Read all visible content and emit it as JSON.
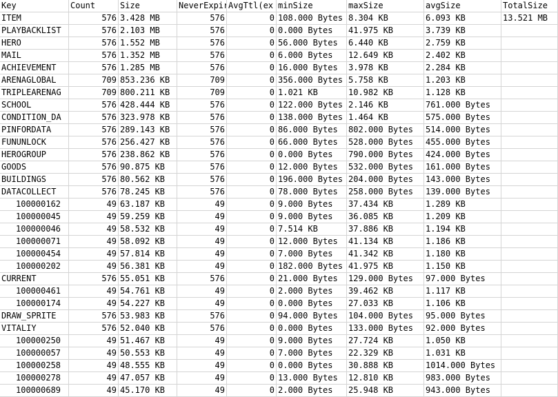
{
  "sheet": {
    "headers": [
      "Key",
      "Count",
      "Size",
      "NeverExpire",
      "AvgTtl(ex",
      "minSize",
      "maxSize",
      "avgSize",
      "TotalSize"
    ],
    "total_size_value": "13.521 MB",
    "rows": [
      {
        "key": "ITEM",
        "indent": false,
        "count": "576",
        "size": "3.428 MB",
        "never": "576",
        "avgttl": "0",
        "min": "108.000 Bytes",
        "max": "8.304 KB",
        "avg": "6.093 KB"
      },
      {
        "key": "PLAYBACKLIST",
        "indent": false,
        "count": "576",
        "size": "2.103 MB",
        "never": "576",
        "avgttl": "0",
        "min": "0.000 Bytes",
        "max": "41.975 KB",
        "avg": "3.739 KB"
      },
      {
        "key": "HERO",
        "indent": false,
        "count": "576",
        "size": "1.552 MB",
        "never": "576",
        "avgttl": "0",
        "min": "56.000 Bytes",
        "max": "6.440 KB",
        "avg": "2.759 KB"
      },
      {
        "key": "MAIL",
        "indent": false,
        "count": "576",
        "size": "1.352 MB",
        "never": "576",
        "avgttl": "0",
        "min": "6.000 Bytes",
        "max": "12.649 KB",
        "avg": "2.402 KB"
      },
      {
        "key": "ACHIEVEMENT",
        "indent": false,
        "count": "576",
        "size": "1.285 MB",
        "never": "576",
        "avgttl": "0",
        "min": "16.000 Bytes",
        "max": "3.978 KB",
        "avg": "2.284 KB"
      },
      {
        "key": "ARENAGLOBAL",
        "indent": false,
        "count": "709",
        "size": "853.236 KB",
        "never": "709",
        "avgttl": "0",
        "min": "356.000 Bytes",
        "max": "5.758 KB",
        "avg": "1.203 KB"
      },
      {
        "key": "TRIPLEARENAG",
        "indent": false,
        "count": "709",
        "size": "800.211 KB",
        "never": "709",
        "avgttl": "0",
        "min": "1.021 KB",
        "max": "10.982 KB",
        "avg": "1.128 KB"
      },
      {
        "key": "SCHOOL",
        "indent": false,
        "count": "576",
        "size": "428.444 KB",
        "never": "576",
        "avgttl": "0",
        "min": "122.000 Bytes",
        "max": "2.146 KB",
        "avg": "761.000 Bytes"
      },
      {
        "key": "CONDITION_DA",
        "indent": false,
        "count": "576",
        "size": "323.978 KB",
        "never": "576",
        "avgttl": "0",
        "min": "138.000 Bytes",
        "max": "1.464 KB",
        "avg": "575.000 Bytes"
      },
      {
        "key": "PINFORDATA",
        "indent": false,
        "count": "576",
        "size": "289.143 KB",
        "never": "576",
        "avgttl": "0",
        "min": "86.000 Bytes",
        "max": "802.000 Bytes",
        "avg": "514.000 Bytes"
      },
      {
        "key": "FUNUNLOCK",
        "indent": false,
        "count": "576",
        "size": "256.427 KB",
        "never": "576",
        "avgttl": "0",
        "min": "66.000 Bytes",
        "max": "528.000 Bytes",
        "avg": "455.000 Bytes"
      },
      {
        "key": "HEROGROUP",
        "indent": false,
        "count": "576",
        "size": "238.862 KB",
        "never": "576",
        "avgttl": "0",
        "min": "0.000 Bytes",
        "max": "790.000 Bytes",
        "avg": "424.000 Bytes"
      },
      {
        "key": "GOODS",
        "indent": false,
        "count": "576",
        "size": "90.875 KB",
        "never": "576",
        "avgttl": "0",
        "min": "12.000 Bytes",
        "max": "532.000 Bytes",
        "avg": "161.000 Bytes"
      },
      {
        "key": "BUILDINGS",
        "indent": false,
        "count": "576",
        "size": "80.562 KB",
        "never": "576",
        "avgttl": "0",
        "min": "196.000 Bytes",
        "max": "204.000 Bytes",
        "avg": "143.000 Bytes"
      },
      {
        "key": "DATACOLLECT",
        "indent": false,
        "count": "576",
        "size": "78.245 KB",
        "never": "576",
        "avgttl": "0",
        "min": "78.000 Bytes",
        "max": "258.000 Bytes",
        "avg": "139.000 Bytes"
      },
      {
        "key": "100000162",
        "indent": true,
        "count": "49",
        "size": "63.187 KB",
        "never": "49",
        "avgttl": "0",
        "min": "9.000 Bytes",
        "max": "37.434 KB",
        "avg": "1.289 KB"
      },
      {
        "key": "100000045",
        "indent": true,
        "count": "49",
        "size": "59.259 KB",
        "never": "49",
        "avgttl": "0",
        "min": "9.000 Bytes",
        "max": "36.085 KB",
        "avg": "1.209 KB"
      },
      {
        "key": "100000046",
        "indent": true,
        "count": "49",
        "size": "58.532 KB",
        "never": "49",
        "avgttl": "0",
        "min": "7.514 KB",
        "max": "37.886 KB",
        "avg": "1.194 KB"
      },
      {
        "key": "100000071",
        "indent": true,
        "count": "49",
        "size": "58.092 KB",
        "never": "49",
        "avgttl": "0",
        "min": "12.000 Bytes",
        "max": "41.134 KB",
        "avg": "1.186 KB"
      },
      {
        "key": "100000454",
        "indent": true,
        "count": "49",
        "size": "57.814 KB",
        "never": "49",
        "avgttl": "0",
        "min": "7.000 Bytes",
        "max": "41.342 KB",
        "avg": "1.180 KB"
      },
      {
        "key": "100000202",
        "indent": true,
        "count": "49",
        "size": "56.381 KB",
        "never": "49",
        "avgttl": "0",
        "min": "182.000 Bytes",
        "max": "41.975 KB",
        "avg": "1.150 KB"
      },
      {
        "key": "CURRENT",
        "indent": false,
        "count": "576",
        "size": "55.051 KB",
        "never": "576",
        "avgttl": "0",
        "min": "21.000 Bytes",
        "max": "129.000 Bytes",
        "avg": "97.000 Bytes"
      },
      {
        "key": "100000461",
        "indent": true,
        "count": "49",
        "size": "54.761 KB",
        "never": "49",
        "avgttl": "0",
        "min": "2.000 Bytes",
        "max": "39.462 KB",
        "avg": "1.117 KB"
      },
      {
        "key": "100000174",
        "indent": true,
        "count": "49",
        "size": "54.227 KB",
        "never": "49",
        "avgttl": "0",
        "min": "0.000 Bytes",
        "max": "27.033 KB",
        "avg": "1.106 KB"
      },
      {
        "key": "DRAW_SPRITE",
        "indent": false,
        "count": "576",
        "size": "53.983 KB",
        "never": "576",
        "avgttl": "0",
        "min": "94.000 Bytes",
        "max": "104.000 Bytes",
        "avg": "95.000 Bytes"
      },
      {
        "key": "VITALIY",
        "indent": false,
        "count": "576",
        "size": "52.040 KB",
        "never": "576",
        "avgttl": "0",
        "min": "0.000 Bytes",
        "max": "133.000 Bytes",
        "avg": "92.000 Bytes"
      },
      {
        "key": "100000250",
        "indent": true,
        "count": "49",
        "size": "51.467 KB",
        "never": "49",
        "avgttl": "0",
        "min": "9.000 Bytes",
        "max": "27.724 KB",
        "avg": "1.050 KB"
      },
      {
        "key": "100000057",
        "indent": true,
        "count": "49",
        "size": "50.553 KB",
        "never": "49",
        "avgttl": "0",
        "min": "7.000 Bytes",
        "max": "22.329 KB",
        "avg": "1.031 KB"
      },
      {
        "key": "100000258",
        "indent": true,
        "count": "49",
        "size": "48.555 KB",
        "never": "49",
        "avgttl": "0",
        "min": "0.000 Bytes",
        "max": "30.888 KB",
        "avg": "1014.000 Bytes"
      },
      {
        "key": "100000278",
        "indent": true,
        "count": "49",
        "size": "47.057 KB",
        "never": "49",
        "avgttl": "0",
        "min": "13.000 Bytes",
        "max": "12.810 KB",
        "avg": "983.000 Bytes"
      },
      {
        "key": "100000689",
        "indent": true,
        "count": "49",
        "size": "45.170 KB",
        "never": "49",
        "avgttl": "0",
        "min": "2.000 Bytes",
        "max": "25.948 KB",
        "avg": "943.000 Bytes"
      }
    ]
  }
}
